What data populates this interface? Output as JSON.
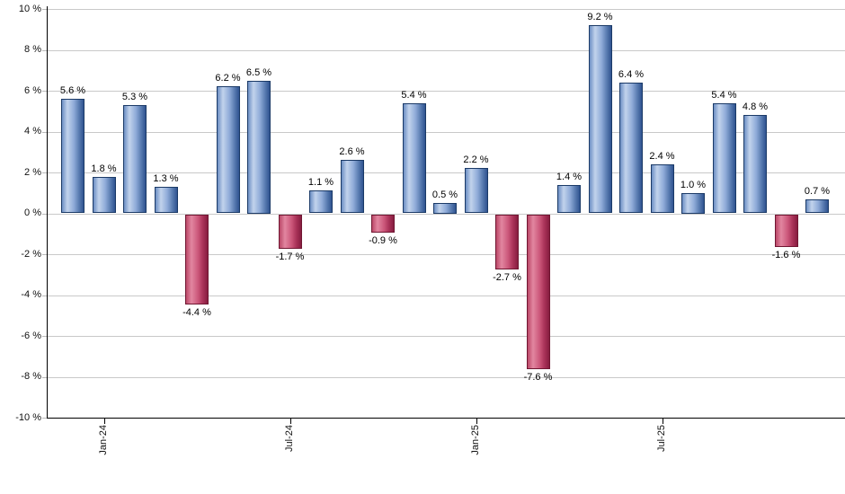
{
  "chart_data": {
    "type": "bar",
    "title": "",
    "unit": "%",
    "grid": "horizontal",
    "legend": null,
    "ylim": [
      -10,
      10
    ],
    "points": [
      {
        "value": 5.6,
        "label": "5.6 %"
      },
      {
        "value": 1.8,
        "label": "1.8 %"
      },
      {
        "value": 5.3,
        "label": "5.3 %"
      },
      {
        "value": 1.3,
        "label": "1.3 %"
      },
      {
        "value": -4.4,
        "label": "-4.4 %"
      },
      {
        "value": 6.2,
        "label": "6.2 %"
      },
      {
        "value": 6.5,
        "label": "6.5 %"
      },
      {
        "value": -1.7,
        "label": "-1.7 %"
      },
      {
        "value": 1.1,
        "label": "1.1 %"
      },
      {
        "value": 2.6,
        "label": "2.6 %"
      },
      {
        "value": -0.9,
        "label": "-0.9 %"
      },
      {
        "value": 5.4,
        "label": "5.4 %"
      },
      {
        "value": 0.5,
        "label": "0.5 %"
      },
      {
        "value": 2.2,
        "label": "2.2 %"
      },
      {
        "value": -2.7,
        "label": "-2.7 %"
      },
      {
        "value": -7.6,
        "label": "-7.6 %"
      },
      {
        "value": 1.4,
        "label": "1.4 %"
      },
      {
        "value": 9.2,
        "label": "9.2 %"
      },
      {
        "value": 6.4,
        "label": "6.4 %"
      },
      {
        "value": 2.4,
        "label": "2.4 %"
      },
      {
        "value": 1.0,
        "label": "1.0 %"
      },
      {
        "value": 5.4,
        "label": "5.4 %"
      },
      {
        "value": 4.8,
        "label": "4.8 %"
      },
      {
        "value": -1.6,
        "label": "-1.6 %"
      },
      {
        "value": 0.7,
        "label": "0.7 %"
      }
    ],
    "xticks": [
      {
        "bar_index": 1,
        "label": "Jan-24"
      },
      {
        "bar_index": 7,
        "label": "Jul-24"
      },
      {
        "bar_index": 13,
        "label": "Jan-25"
      },
      {
        "bar_index": 19,
        "label": "Jul-25"
      }
    ],
    "yticks": [
      {
        "value": 10,
        "label": "10 %"
      },
      {
        "value": 8,
        "label": "8 %"
      },
      {
        "value": 6,
        "label": "6 %"
      },
      {
        "value": 4,
        "label": "4 %"
      },
      {
        "value": 2,
        "label": "2 %"
      },
      {
        "value": 0,
        "label": "0 %"
      },
      {
        "value": -2,
        "label": "-2 %"
      },
      {
        "value": -4,
        "label": "-4 %"
      },
      {
        "value": -6,
        "label": "-6 %"
      },
      {
        "value": -8,
        "label": "-8 %"
      },
      {
        "value": -10,
        "label": "-10 %"
      }
    ],
    "colors": {
      "positive": {
        "border": "#1b3a67",
        "stops": [
          "#6d8fc4",
          "#c2d3ec",
          "#8fabd8",
          "#5b7db2",
          "#2f5390"
        ]
      },
      "negative": {
        "border": "#701732",
        "stops": [
          "#bb4868",
          "#e286a0",
          "#cc587b",
          "#a93258",
          "#871d40"
        ]
      },
      "gridline": "#c9c9c9",
      "tick": "#b9b9b9",
      "axis": "#000000",
      "text": "#111111"
    }
  }
}
